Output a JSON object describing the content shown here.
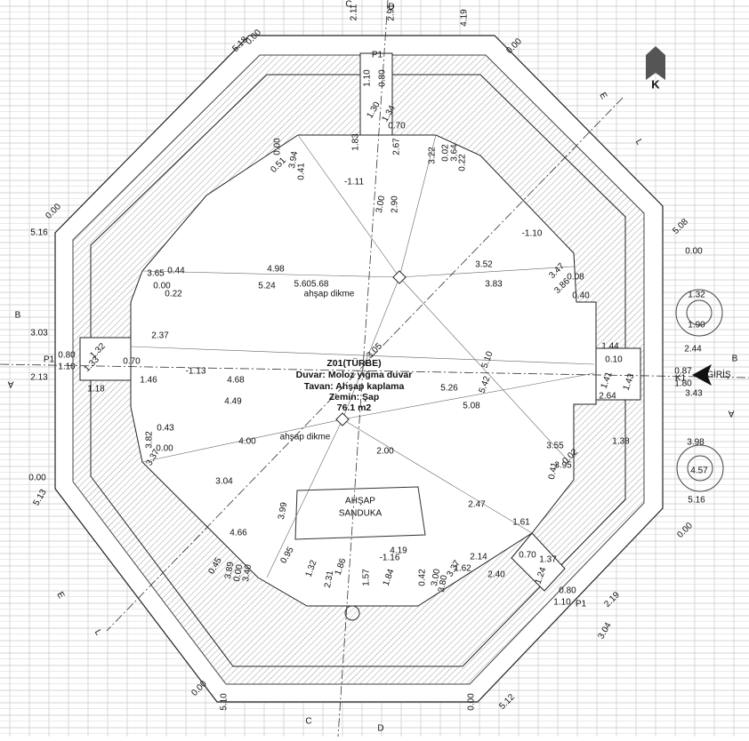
{
  "room": {
    "code": "Z01(TÜRBE)",
    "wall": "Duvar: Moloz yığma duvar",
    "ceiling": "Tavan: Ahşap kaplama",
    "floor": "Zemin: Şap",
    "area": "76.1 m2"
  },
  "sarcophagus": [
    "AHŞAP",
    "SANDUKA"
  ],
  "north": "K",
  "labels": [
    "2.11",
    "2.91",
    "C",
    "D",
    "4.19",
    "5.18",
    "0.00",
    "0.00",
    "P1",
    "1.10",
    "0.80",
    "E",
    "L",
    "1.30",
    "1.34",
    "0.70",
    "1.83",
    "2.67",
    "0.00",
    "0.51",
    "3.94",
    "0.41",
    "-1.11",
    "3.00",
    "2.90",
    "3.22",
    "0.02",
    "3.64",
    "0.22",
    "0.00",
    "5.16",
    "5.08",
    "0.00",
    "-1.10",
    "3.65",
    "0.44",
    "4.98",
    "0.00",
    "0.22",
    "5.24",
    "5.605.68",
    "ahşap dikme",
    "3.52",
    "3.83",
    "3.47",
    "0.08",
    "3.86",
    "0.40",
    "1.32",
    "1.90",
    "2.44",
    "B",
    "3.03",
    "0.80",
    "P1",
    "1.10",
    "1.32",
    "1.33",
    "0.70",
    "2.37",
    "-1.13",
    "2.13",
    "A",
    "1.18",
    "1.46",
    "4.68",
    "4.49",
    "3.05",
    "5.10",
    "1.44",
    "0.10",
    "1.41",
    "1.43",
    "0.87",
    "K1",
    "GİRİŞ",
    "1.80",
    "B",
    "3.43",
    "A",
    "5.26",
    "5.42",
    "2.64",
    "5.08",
    "ahşap dikme",
    "0.43",
    "3.82",
    "0.00",
    "3.37",
    "4.00",
    "2.00",
    "1.38",
    "3.98",
    "3.55",
    "0.02",
    "3.95",
    "0.41",
    "4.57",
    "0.00",
    "5.13",
    "3.04",
    "3.99",
    "2.47",
    "1.61",
    "5.16",
    "0.00",
    "4.66",
    "2.14",
    "4.19",
    "1.62",
    "2.40",
    "0.70",
    "1.37",
    "0.45",
    "3.89",
    "0.00",
    "3.40",
    "0.95",
    "1.32",
    "1.86",
    "2.31",
    "-1.16",
    "1.57",
    "1.84",
    "0.42",
    "3.00",
    "3.80",
    "3.37",
    "1.24",
    "0.80",
    "1.10",
    "P1",
    "2.19",
    "3.04",
    "E",
    "L",
    "0.00",
    "5.10",
    "0.00",
    "5.12",
    "C",
    "D"
  ]
}
